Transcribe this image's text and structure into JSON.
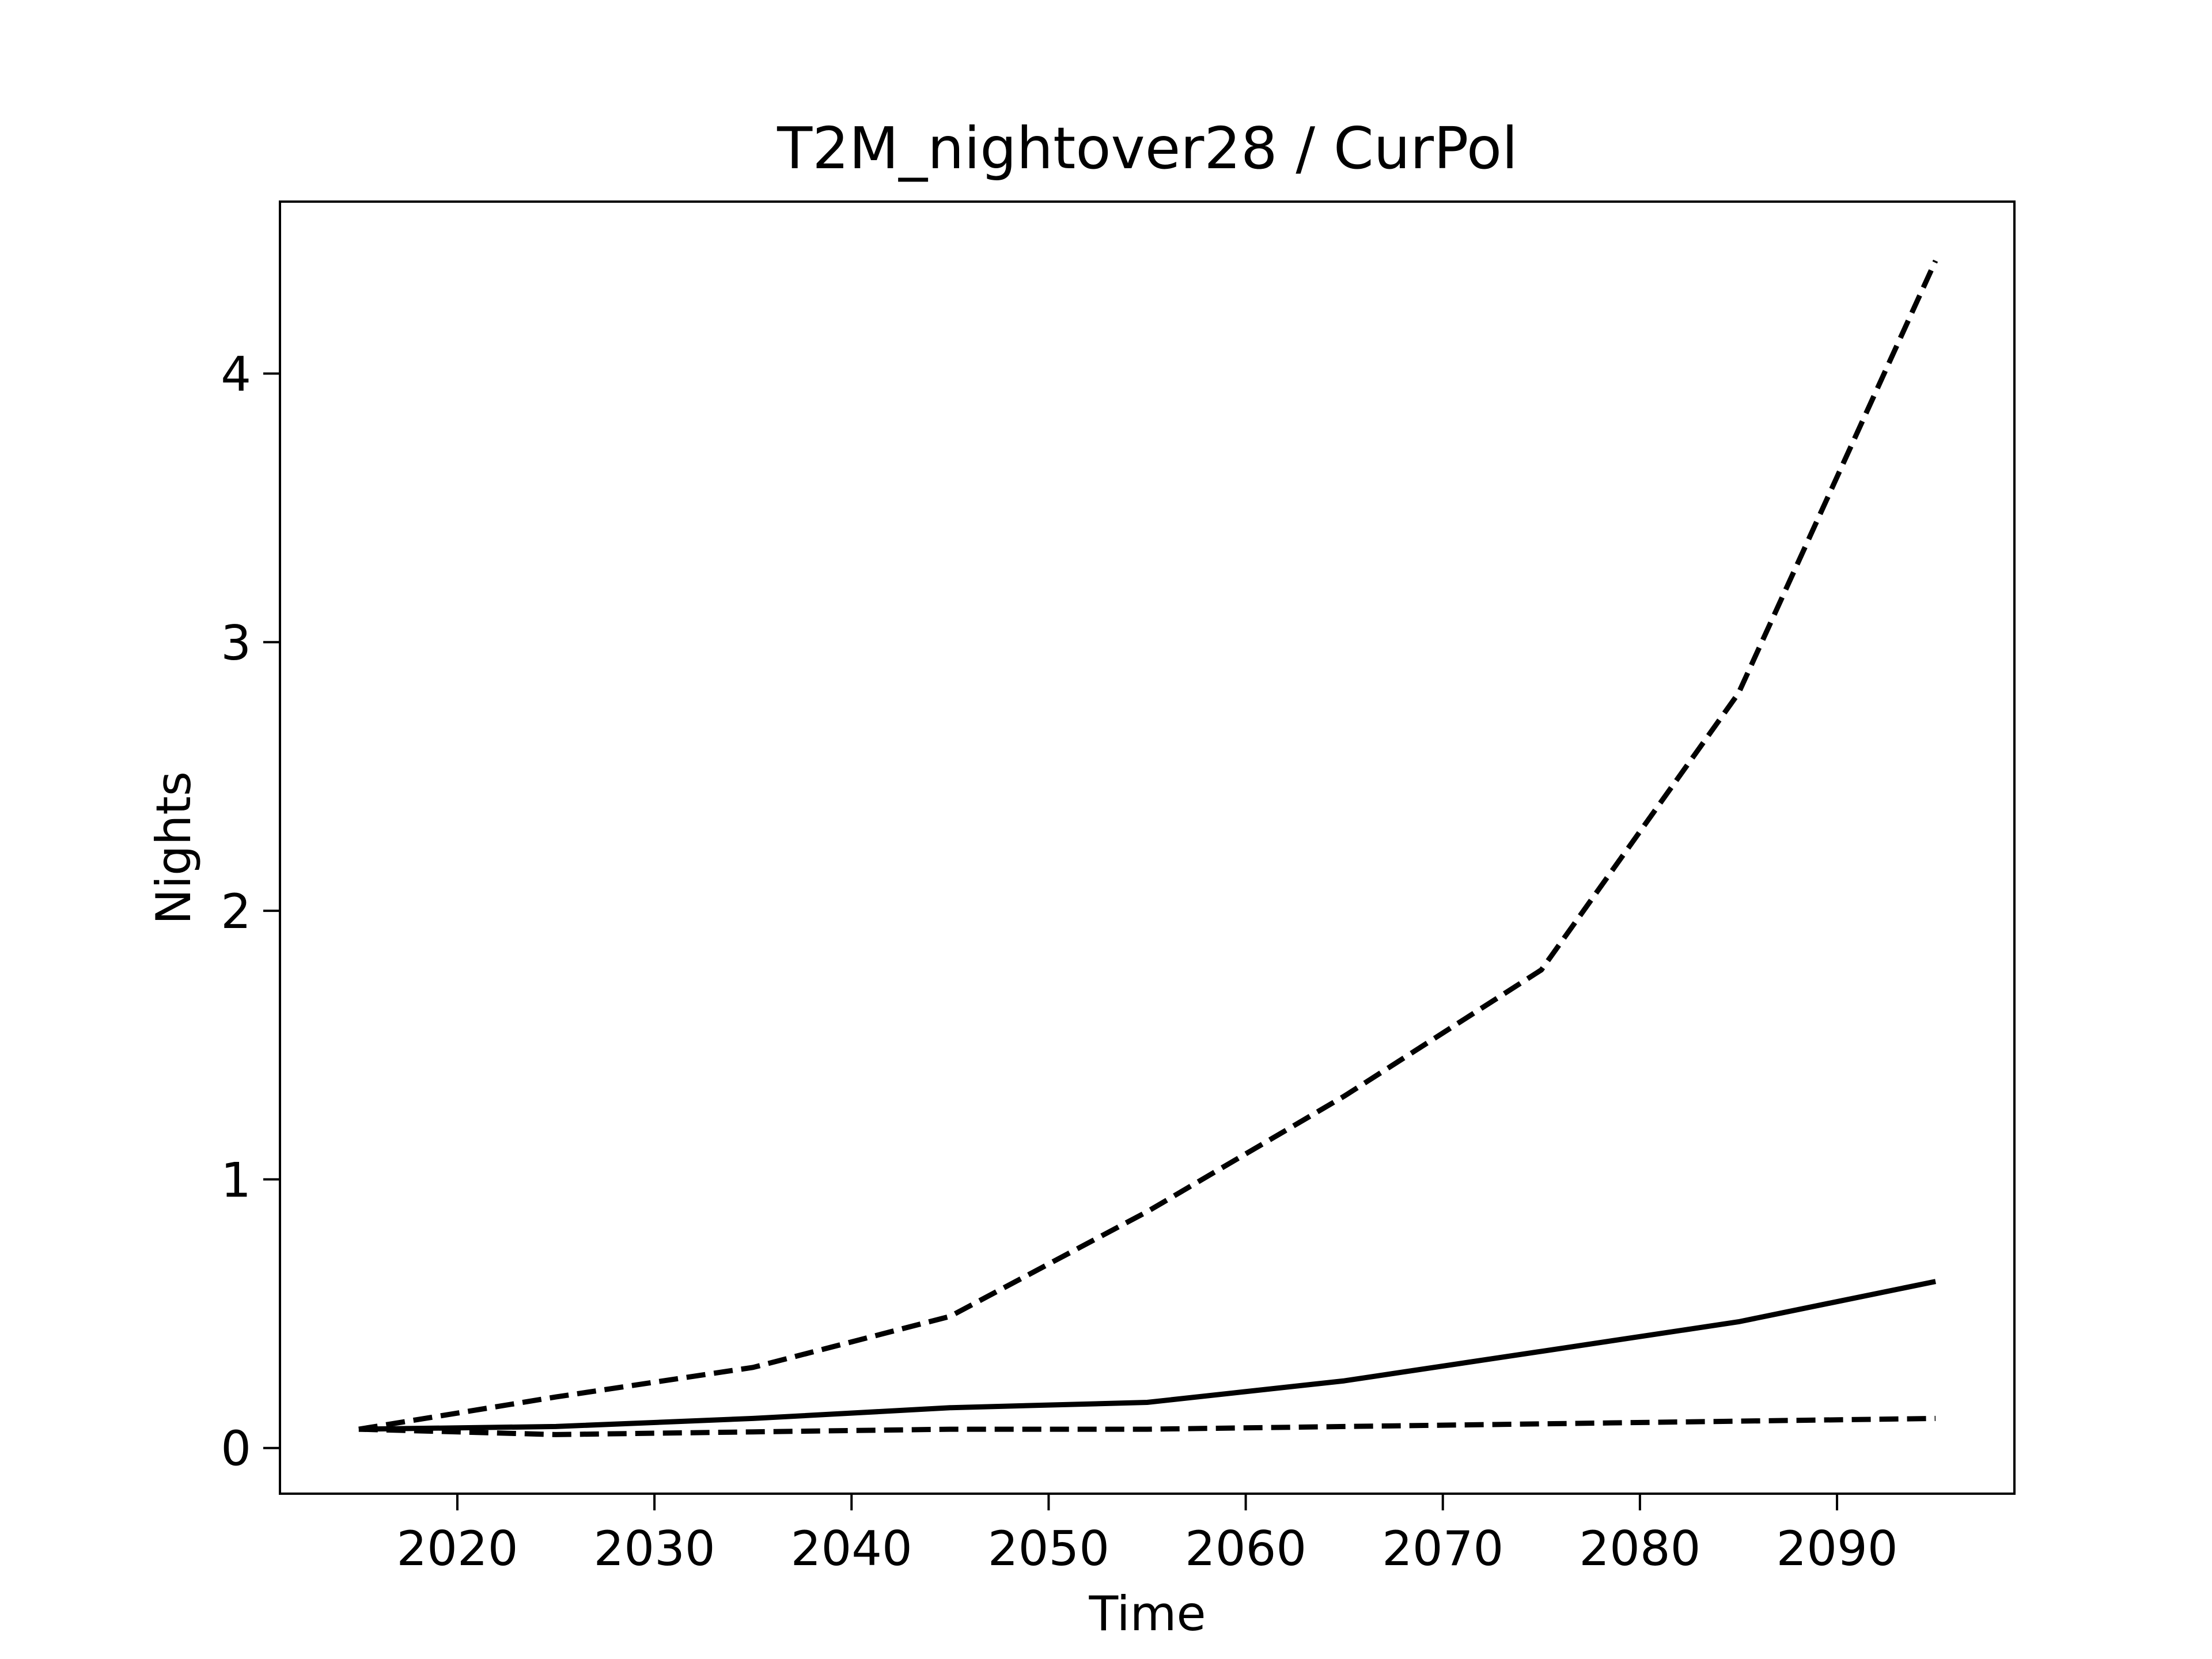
{
  "chart_data": {
    "type": "line",
    "title": "T2M_nightover28 / CurPol",
    "xlabel": "Time",
    "ylabel": "Nights",
    "xlim": [
      2011,
      2099
    ],
    "ylim": [
      -0.17,
      4.64
    ],
    "x_ticks": [
      2020,
      2030,
      2040,
      2050,
      2060,
      2070,
      2080,
      2090
    ],
    "y_ticks": [
      0,
      1,
      2,
      3,
      4
    ],
    "grid": false,
    "legend": "none",
    "x": [
      2015,
      2025,
      2035,
      2045,
      2055,
      2065,
      2075,
      2085,
      2095
    ],
    "series": [
      {
        "style": "solid",
        "color": "#000000",
        "values": [
          0.07,
          0.08,
          0.11,
          0.15,
          0.17,
          0.25,
          0.36,
          0.47,
          0.62
        ]
      },
      {
        "style": "dashed",
        "color": "#000000",
        "values": [
          0.07,
          0.19,
          0.3,
          0.49,
          0.88,
          1.31,
          1.78,
          2.81,
          4.42
        ]
      },
      {
        "style": "dashed",
        "color": "#000000",
        "values": [
          0.07,
          0.05,
          0.06,
          0.07,
          0.07,
          0.08,
          0.09,
          0.1,
          0.11
        ]
      }
    ]
  }
}
